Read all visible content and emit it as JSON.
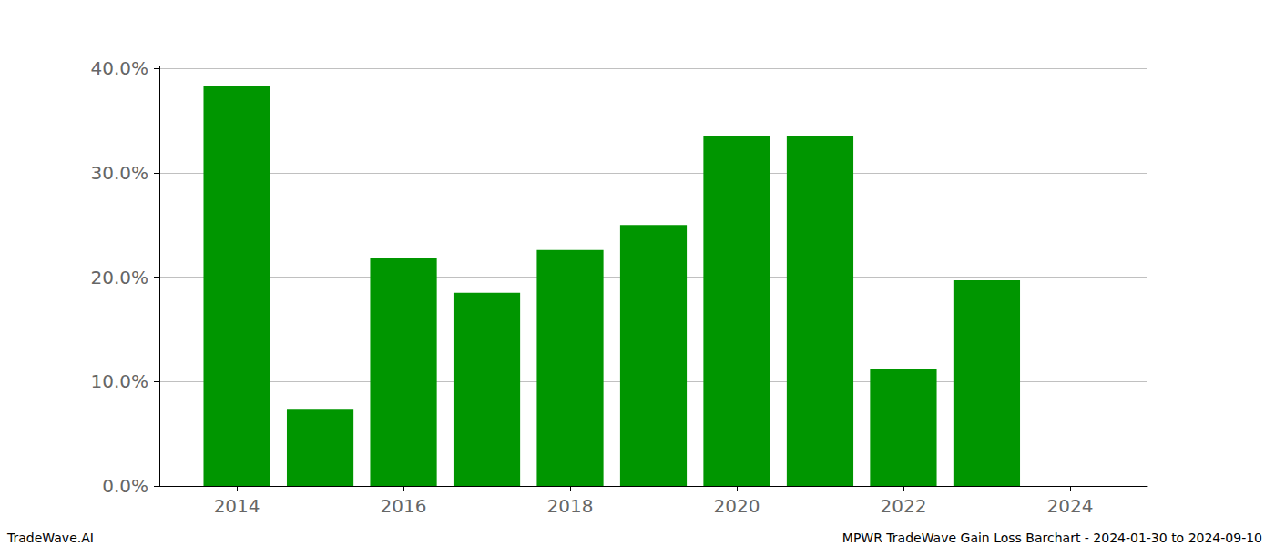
{
  "chart_data": {
    "type": "bar",
    "x": [
      2014,
      2015,
      2016,
      2017,
      2018,
      2019,
      2020,
      2021,
      2022,
      2023
    ],
    "values": [
      38.3,
      7.4,
      21.8,
      18.5,
      22.6,
      25.0,
      33.5,
      33.5,
      11.2,
      19.7
    ],
    "color": "#009600",
    "xlim": [
      2013.07,
      2024.93
    ],
    "xticks": [
      2014,
      2016,
      2018,
      2020,
      2022,
      2024
    ],
    "ylim": [
      0,
      40.2
    ],
    "yticks": [
      {
        "value": 0,
        "label": "0.0%"
      },
      {
        "value": 10,
        "label": "10.0%"
      },
      {
        "value": 20,
        "label": "20.0%"
      },
      {
        "value": 30,
        "label": "30.0%"
      },
      {
        "value": 40,
        "label": "40.0%"
      }
    ],
    "grid": true,
    "annotations": [
      "TradeWave.AI",
      "MPWR TradeWave Gain Loss Barchart - 2024-01-30 to 2024-09-10"
    ]
  }
}
